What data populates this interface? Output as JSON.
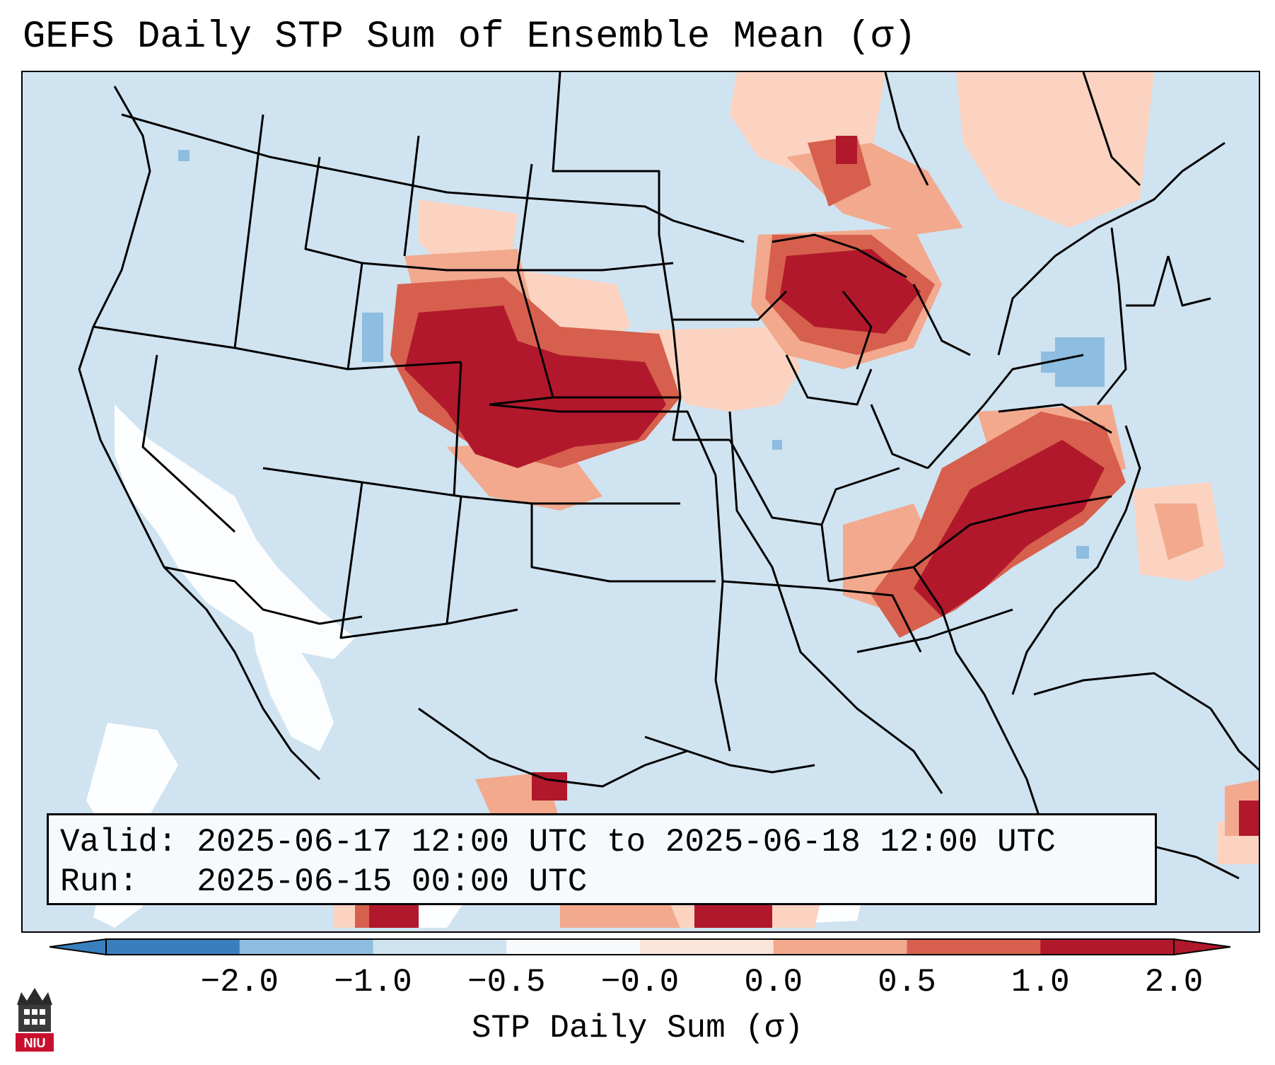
{
  "title": "GEFS Daily STP Sum of Ensemble Mean (σ)",
  "info": {
    "valid_label": "Valid:",
    "valid_value": "2025-06-17 12:00 UTC to 2025-06-18 12:00 UTC",
    "run_label": "Run:",
    "run_value": "2025-06-15 00:00 UTC"
  },
  "colorbar": {
    "label": "STP Daily Sum (σ)",
    "ticks": [
      "−2.0",
      "−1.0",
      "−0.5",
      "−0.0",
      "0.0",
      "0.5",
      "1.0",
      "2.0"
    ],
    "colors": [
      "#3a7fbd",
      "#8dbde0",
      "#d0e3f0",
      "#f7fafd",
      "#fbe5da",
      "#f2a98e",
      "#d6604d",
      "#b2182b"
    ]
  },
  "logo": {
    "text": "NIU"
  },
  "map_colors": {
    "background": "#d0e3f0",
    "neutral": "#ffffff",
    "light_positive": "#fbd3c0",
    "medium_positive": "#f2a98e",
    "strong_positive": "#d6604d",
    "max_positive": "#b2182b",
    "light_negative": "#8dbde0"
  }
}
